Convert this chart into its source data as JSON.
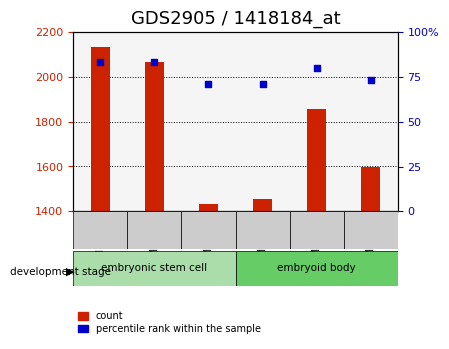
{
  "title": "GDS2905 / 1418184_at",
  "samples": [
    "GSM72622",
    "GSM72624",
    "GSM72626",
    "GSM72616",
    "GSM72618",
    "GSM72621"
  ],
  "counts": [
    2135,
    2065,
    1435,
    1455,
    1855,
    1600
  ],
  "percentiles": [
    83,
    83,
    71,
    71,
    80,
    73
  ],
  "ylim_left": [
    1400,
    2200
  ],
  "ylim_right": [
    0,
    100
  ],
  "yticks_left": [
    1400,
    1600,
    1800,
    2000,
    2200
  ],
  "yticks_right": [
    0,
    25,
    50,
    75,
    100
  ],
  "groups": [
    {
      "label": "embryonic stem cell",
      "indices": [
        0,
        1,
        2
      ],
      "color": "#aaddaa"
    },
    {
      "label": "embryoid body",
      "indices": [
        3,
        4,
        5
      ],
      "color": "#66cc66"
    }
  ],
  "bar_color": "#cc2200",
  "dot_color": "#0000cc",
  "bar_width": 0.35,
  "background_plot": "#f5f5f5",
  "background_label": "#cccccc",
  "grid_color": "#000000",
  "title_fontsize": 13,
  "tick_label_color_left": "#cc2200",
  "tick_label_color_right": "#0000cc",
  "development_stage_label": "development stage",
  "legend_count_label": "count",
  "legend_percentile_label": "percentile rank within the sample"
}
